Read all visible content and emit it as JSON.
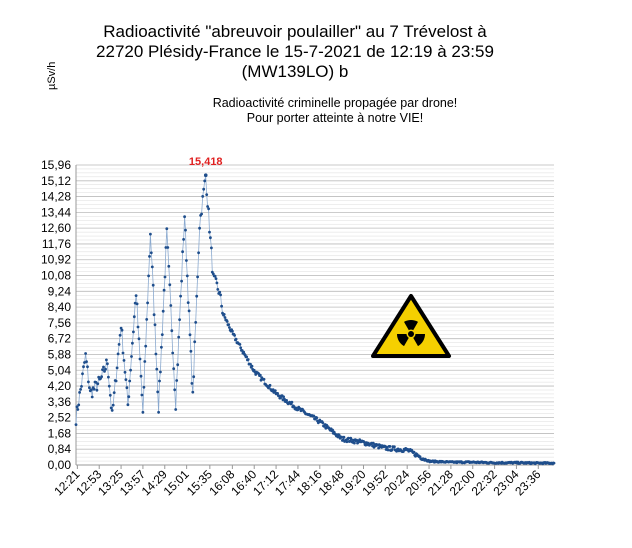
{
  "chart_data": {
    "type": "line",
    "title_lines": [
      "Radioactivité \"abreuvoir poulailler\" au 7 Trévelost à",
      "22720 Plésidy-France le 15-7-2021 de 12:19 à 23:59",
      "(MW139LO) b"
    ],
    "subtitle_lines": [
      "Radioactivité criminelle propagée par drone!",
      "Pour porter atteinte à notre VIE!"
    ],
    "ylabel": "µSv/h",
    "ylim": [
      0,
      15.96
    ],
    "y_ticks": [
      "0,00",
      "0,84",
      "1,68",
      "2,52",
      "3,36",
      "4,20",
      "5,04",
      "5,88",
      "6,72",
      "7,56",
      "8,40",
      "9,24",
      "10,08",
      "10,92",
      "11,76",
      "12,60",
      "13,44",
      "14,28",
      "15,12",
      "15,96"
    ],
    "x_ticks": [
      "12:21",
      "12:53",
      "13:25",
      "13:57",
      "14:29",
      "15:01",
      "15:35",
      "16:08",
      "16:40",
      "17:12",
      "17:44",
      "18:16",
      "18:48",
      "19:20",
      "19:52",
      "20:24",
      "20:56",
      "21:28",
      "22:00",
      "22:32",
      "23:04",
      "23:36"
    ],
    "x_range": [
      "12:19",
      "23:59"
    ],
    "peak": {
      "time": "15:29",
      "value": 15.418,
      "label": "15,418"
    },
    "key_points": [
      [
        "12:19",
        2.5
      ],
      [
        "12:27",
        4.3
      ],
      [
        "12:33",
        5.8
      ],
      [
        "12:40",
        3.8
      ],
      [
        "12:55",
        4.5
      ],
      [
        "13:05",
        5.5
      ],
      [
        "13:12",
        2.6
      ],
      [
        "13:25",
        7.5
      ],
      [
        "13:35",
        3.2
      ],
      [
        "13:47",
        9.2
      ],
      [
        "13:57",
        2.8
      ],
      [
        "14:08",
        12.4
      ],
      [
        "14:20",
        3.1
      ],
      [
        "14:32",
        12.3
      ],
      [
        "14:45",
        3.3
      ],
      [
        "14:58",
        13.3
      ],
      [
        "15:10",
        3.6
      ],
      [
        "15:20",
        12.8
      ],
      [
        "15:29",
        15.4
      ],
      [
        "15:40",
        9.9
      ],
      [
        "15:48",
        9.3
      ],
      [
        "15:55",
        8.0
      ],
      [
        "16:08",
        7.0
      ],
      [
        "16:40",
        5.0
      ],
      [
        "17:12",
        3.8
      ],
      [
        "17:44",
        3.0
      ],
      [
        "18:16",
        2.3
      ],
      [
        "18:48",
        1.4
      ],
      [
        "19:20",
        1.2
      ],
      [
        "19:52",
        0.9
      ],
      [
        "20:24",
        0.8
      ],
      [
        "20:56",
        0.2
      ],
      [
        "21:28",
        0.15
      ],
      [
        "22:00",
        0.15
      ],
      [
        "22:32",
        0.12
      ],
      [
        "23:04",
        0.12
      ],
      [
        "23:36",
        0.1
      ],
      [
        "23:59",
        0.1
      ]
    ],
    "series_color": "#1f4e8c",
    "grid": true,
    "warning_icon": "radiation-warning-icon",
    "warning_colors": {
      "fill": "#f5d000",
      "stroke": "#000000"
    }
  }
}
